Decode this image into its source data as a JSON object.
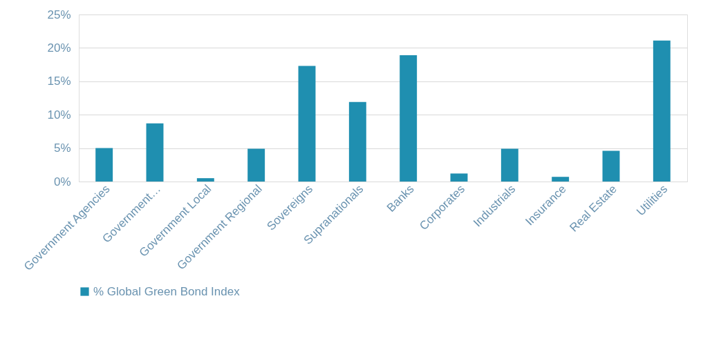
{
  "chart_data": {
    "type": "bar",
    "categories": [
      "Government Agencies",
      "Government…",
      "Government Local",
      "Government Regional",
      "Sovereigns",
      "Supranationals",
      "Banks",
      "Corporates",
      "Industrials",
      "Insurance",
      "Real Estate",
      "Utilities"
    ],
    "series": [
      {
        "name": "% Global Green Bond Index",
        "color": "#1f8fb0",
        "values": [
          5.0,
          8.7,
          0.5,
          4.9,
          17.3,
          11.9,
          18.9,
          1.2,
          4.9,
          0.7,
          4.6,
          21.1
        ]
      }
    ],
    "ylim": [
      0,
      25
    ],
    "yticks": [
      {
        "value": 0,
        "label": "0%"
      },
      {
        "value": 5,
        "label": "5%"
      },
      {
        "value": 10,
        "label": "10%"
      },
      {
        "value": 15,
        "label": "15%"
      },
      {
        "value": 20,
        "label": "20%"
      },
      {
        "value": 25,
        "label": "25%"
      }
    ],
    "grid": "y",
    "legend": "bottom"
  }
}
